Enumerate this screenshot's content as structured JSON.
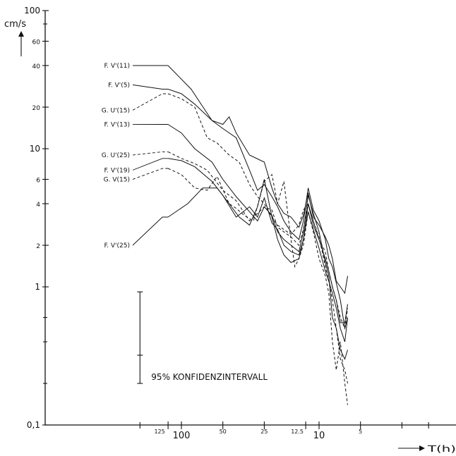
{
  "chart_data": {
    "type": "line",
    "title": "",
    "ylabel": "cm/s",
    "xlabel": "T(h)",
    "x_scale": "log-reversed",
    "y_scale": "log",
    "xlim": [
      300,
      4
    ],
    "ylim": [
      0.1,
      100
    ],
    "grid": false,
    "y_ticks": [
      {
        "value": 100,
        "label": "100"
      },
      {
        "value": 60,
        "label": "60"
      },
      {
        "value": 40,
        "label": "40"
      },
      {
        "value": 20,
        "label": "20"
      },
      {
        "value": 10,
        "label": "10"
      },
      {
        "value": 6,
        "label": "6"
      },
      {
        "value": 4,
        "label": "4"
      },
      {
        "value": 2,
        "label": "2"
      },
      {
        "value": 1,
        "label": "1"
      },
      {
        "value": 0.1,
        "label": "0,1"
      }
    ],
    "y_minor_ticks": [
      80,
      0.6,
      0.4,
      0.2
    ],
    "x_ticks": [
      {
        "value": 125,
        "label": "125",
        "size": "small",
        "dx": -12
      },
      {
        "value": 100,
        "label": "100",
        "size": "large",
        "dx": 0
      },
      {
        "value": 50,
        "label": "50",
        "size": "small",
        "dx": 0
      },
      {
        "value": 25,
        "label": "25",
        "size": "small",
        "dx": 0
      },
      {
        "value": 12.5,
        "label": "12.5",
        "size": "small",
        "dx": -12
      },
      {
        "value": 10,
        "label": "10",
        "size": "large",
        "dx": 0
      },
      {
        "value": 5,
        "label": "5",
        "size": "small",
        "dx": 0
      }
    ],
    "x_minor_ticks": [
      200
    ],
    "series": [
      {
        "name": "F. V'(11)",
        "dashed": false,
        "label_at": [
          115,
          40
        ],
        "x": [
          125,
          85,
          60,
          50,
          45,
          40,
          32,
          25,
          22,
          20,
          18,
          16,
          14,
          13,
          12,
          11,
          10,
          9,
          8.5,
          8,
          7.5,
          7,
          6.5,
          6.2
        ],
        "y": [
          40,
          27,
          16,
          15,
          17,
          13,
          9,
          8,
          5.2,
          4,
          3.4,
          3.2,
          2.7,
          3.3,
          4.8,
          3.2,
          2.8,
          2.3,
          2.0,
          1.6,
          1.1,
          1.0,
          0.9,
          1.2
        ]
      },
      {
        "name": "F. V'(5)",
        "dashed": false,
        "label_at": [
          125,
          29
        ],
        "x": [
          125,
          100,
          80,
          60,
          50,
          40,
          32,
          28,
          25,
          22,
          20,
          18,
          16,
          14,
          13,
          12,
          11,
          10,
          9,
          8.5,
          8,
          7,
          6.5,
          6.2
        ],
        "y": [
          27,
          25,
          21,
          16,
          14,
          12,
          7,
          5,
          5.5,
          4.5,
          3.8,
          3.0,
          2.5,
          2.2,
          3.0,
          5.2,
          3.6,
          3.0,
          2.2,
          1.6,
          1.4,
          0.8,
          0.5,
          0.6
        ]
      },
      {
        "name": "G. U'(15)",
        "dashed": true,
        "label_at": [
          125,
          19
        ],
        "x": [
          125,
          100,
          80,
          65,
          55,
          45,
          38,
          32,
          28,
          25,
          22,
          20,
          18,
          16,
          14,
          13,
          12,
          11,
          10,
          9,
          8.5,
          8,
          7.5,
          7,
          6.5,
          6.2
        ],
        "y": [
          25,
          23,
          20,
          12,
          11,
          9,
          8,
          5.5,
          4.5,
          4.0,
          3.2,
          2.8,
          2.6,
          2.4,
          2.8,
          3.6,
          4.0,
          3.0,
          2.2,
          1.8,
          1.3,
          1.0,
          0.8,
          0.6,
          0.5,
          0.7
        ]
      },
      {
        "name": "F. V'(13)",
        "dashed": false,
        "label_at": [
          125,
          15
        ],
        "x": [
          125,
          100,
          80,
          60,
          50,
          40,
          32,
          28,
          25,
          22,
          20,
          18,
          16,
          14,
          13,
          12,
          11,
          10,
          9,
          8.5,
          8,
          7.5,
          7,
          6.5,
          6.2
        ],
        "y": [
          15,
          13,
          10,
          8,
          6,
          4.5,
          3.5,
          3.0,
          3.8,
          3.3,
          2.5,
          2.2,
          2.0,
          1.8,
          2.5,
          4.6,
          3.4,
          2.5,
          1.5,
          1.2,
          0.6,
          0.5,
          0.35,
          0.3,
          0.35
        ]
      },
      {
        "name": "G. U'(25)",
        "dashed": true,
        "label_at": [
          125,
          9
        ],
        "x": [
          125,
          100,
          80,
          65,
          50,
          40,
          32,
          28,
          25,
          22,
          20,
          18,
          16,
          14,
          13,
          12,
          11,
          10,
          9,
          8.5,
          8,
          7.5,
          7,
          6.5,
          6.2
        ],
        "y": [
          9.5,
          8.5,
          7.8,
          7,
          5,
          4.2,
          3.0,
          3.4,
          3.8,
          3.6,
          2.7,
          2.5,
          2.3,
          2.0,
          2.6,
          4.0,
          3.0,
          2.3,
          1.4,
          1.1,
          0.8,
          0.5,
          0.3,
          0.25,
          0.2
        ]
      },
      {
        "name": "F. V'(19)",
        "dashed": false,
        "label_at": [
          125,
          7
        ],
        "x": [
          125,
          100,
          80,
          60,
          50,
          40,
          32,
          28,
          25,
          22,
          20,
          18,
          16,
          14,
          13,
          12,
          11,
          10,
          9,
          8.5,
          8,
          7.5,
          7,
          6.5,
          6.2
        ],
        "y": [
          8.5,
          8.2,
          7.4,
          5.8,
          4.6,
          3.2,
          3.8,
          3.2,
          4.4,
          2.9,
          2.6,
          2.0,
          1.8,
          1.7,
          2.2,
          4.0,
          2.8,
          2.2,
          1.6,
          1.3,
          1.0,
          0.8,
          0.55,
          0.55,
          0.75
        ]
      },
      {
        "name": "G. V(15)",
        "dashed": true,
        "label_at": [
          125,
          6
        ],
        "x": [
          125,
          100,
          80,
          65,
          55,
          45,
          40,
          35,
          30,
          25,
          22,
          20,
          18,
          16,
          15,
          14,
          13,
          12,
          11,
          10,
          9,
          8.5,
          8,
          7.5,
          7,
          6.5,
          6.2
        ],
        "y": [
          7.2,
          6.5,
          5.2,
          5.0,
          6.3,
          4.0,
          3.7,
          3.3,
          3.0,
          5.8,
          6.5,
          4.0,
          5.8,
          2.2,
          1.4,
          1.6,
          2.0,
          3.5,
          2.5,
          1.6,
          1.2,
          0.9,
          0.4,
          0.25,
          0.4,
          0.2,
          0.14
        ]
      },
      {
        "name": "F. V'(25)",
        "dashed": false,
        "label_at": [
          125,
          2
        ],
        "x": [
          125,
          90,
          70,
          55,
          45,
          38,
          32,
          28,
          25,
          22,
          20,
          18,
          16,
          14,
          13,
          12,
          11,
          10,
          9,
          8.5,
          8,
          7.5,
          7,
          6.5,
          6.2
        ],
        "y": [
          3.2,
          4.0,
          5.2,
          5.2,
          4.0,
          3.2,
          2.8,
          3.8,
          6.0,
          3.2,
          2.2,
          1.7,
          1.5,
          1.6,
          2.2,
          3.5,
          2.6,
          1.9,
          1.3,
          1.1,
          0.9,
          0.7,
          0.5,
          0.4,
          0.6
        ]
      }
    ],
    "annotations": {
      "confidence_interval": {
        "x": 200,
        "center": 0.32,
        "low": 0.2,
        "high": 0.92,
        "label": "95% KONFIDENZINTERVALL"
      }
    }
  }
}
